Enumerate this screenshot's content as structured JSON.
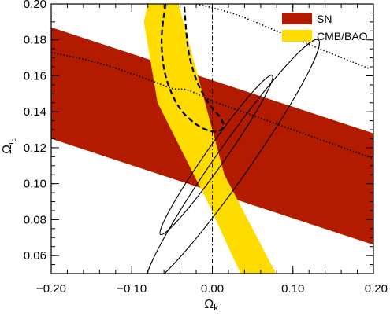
{
  "chart_data": {
    "type": "contour",
    "xlabel": "Ω",
    "xlabel_sub": "k",
    "ylabel": "Ω",
    "ylabel_sub": "r",
    "ylabel_subsub": "c",
    "xlim": [
      -0.2,
      0.2
    ],
    "ylim": [
      0.05,
      0.2
    ],
    "x_ticks": [
      -0.2,
      -0.1,
      0.0,
      0.1,
      0.2
    ],
    "x_tick_labels": [
      "−0.20",
      "−0.10",
      "0.00",
      "0.10",
      "0.20"
    ],
    "y_ticks": [
      0.06,
      0.08,
      0.1,
      0.12,
      0.14,
      0.16,
      0.18,
      0.2
    ],
    "y_tick_labels": [
      "0.06",
      "0.08",
      "0.10",
      "0.12",
      "0.14",
      "0.16",
      "0.18",
      "0.20"
    ],
    "legend_position": "top-right",
    "legend": [
      {
        "label": "SN",
        "color": "#b31b00"
      },
      {
        "label": "CMB/BAO",
        "color": "#ffdc00"
      }
    ],
    "sn_band": {
      "color": "#b31b00",
      "upper_edge": [
        [
          -0.2,
          0.187
        ],
        [
          0.2,
          0.128
        ]
      ],
      "lower_edge": [
        [
          -0.2,
          0.125
        ],
        [
          0.2,
          0.066
        ]
      ]
    },
    "cmb_bao_band": {
      "color": "#ffdc00",
      "polygon": [
        [
          -0.08,
          0.2
        ],
        [
          -0.042,
          0.2
        ],
        [
          0.015,
          0.105
        ],
        [
          0.079,
          0.05
        ],
        [
          0.035,
          0.05
        ],
        [
          -0.005,
          0.089
        ],
        [
          -0.068,
          0.145
        ],
        [
          -0.085,
          0.19
        ]
      ]
    },
    "combined_contours": [
      {
        "center": [
          0.005,
          0.116
        ],
        "semi_axes": [
          0.012,
          0.054
        ],
        "angle_deg": 35,
        "style": "solid"
      },
      {
        "center": [
          0.025,
          0.112
        ],
        "semi_axes": [
          0.021,
          0.083
        ],
        "angle_deg": 35,
        "style": "solid"
      }
    ],
    "dashed_contour": [
      [
        -0.058,
        0.2
      ],
      [
        -0.063,
        0.18
      ],
      [
        -0.058,
        0.16
      ],
      [
        -0.042,
        0.143
      ],
      [
        -0.02,
        0.133
      ],
      [
        0.001,
        0.129
      ],
      [
        0.013,
        0.131
      ],
      [
        0.011,
        0.136
      ],
      [
        -0.005,
        0.145
      ],
      [
        -0.02,
        0.158
      ],
      [
        -0.03,
        0.175
      ],
      [
        -0.035,
        0.2
      ]
    ],
    "dotted_upper": [
      [
        -0.02,
        0.2
      ],
      [
        0.03,
        0.194
      ],
      [
        0.09,
        0.183
      ],
      [
        0.15,
        0.172
      ],
      [
        0.195,
        0.164
      ]
    ],
    "dotted_lower": [
      [
        -0.2,
        0.173
      ],
      [
        -0.14,
        0.167
      ],
      [
        -0.08,
        0.158
      ],
      [
        -0.05,
        0.153
      ],
      [
        -0.03,
        0.152
      ],
      [
        0.0,
        0.146
      ],
      [
        0.05,
        0.138
      ],
      [
        0.1,
        0.13
      ],
      [
        0.15,
        0.122
      ],
      [
        0.2,
        0.114
      ]
    ],
    "reference_lines": {
      "x": 0.0,
      "style": "dash-dot"
    }
  }
}
